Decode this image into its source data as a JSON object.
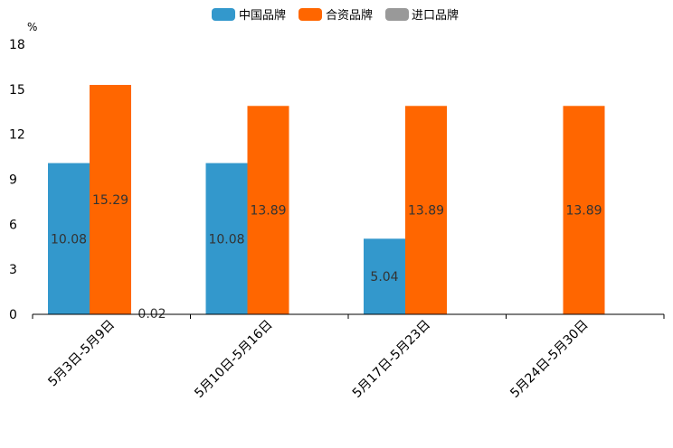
{
  "chart_data": {
    "type": "bar",
    "ylabel": "%",
    "ylim": [
      0,
      18
    ],
    "yticks": [
      "0",
      "3",
      "6",
      "9",
      "12",
      "15",
      "18"
    ],
    "categories": [
      "5月3日-5月9日",
      "5月10日-5月16日",
      "5月17日-5月23日",
      "5月24日-5月30日"
    ],
    "series": [
      {
        "name": "中国品牌",
        "color": "#3398cc",
        "values": [
          10.08,
          10.08,
          5.04,
          null
        ],
        "labels": [
          "10.08",
          "10.08",
          "5.04",
          ""
        ]
      },
      {
        "name": "合资品牌",
        "color": "#ff6600",
        "values": [
          15.29,
          13.89,
          13.89,
          13.89
        ],
        "labels": [
          "15.29",
          "13.89",
          "13.89",
          "13.89"
        ]
      },
      {
        "name": "进口品牌",
        "color": "#999999",
        "values": [
          0.02,
          null,
          null,
          null
        ],
        "labels": [
          "0.02",
          "",
          "",
          ""
        ]
      }
    ],
    "legend_position": "top",
    "grid": false
  }
}
